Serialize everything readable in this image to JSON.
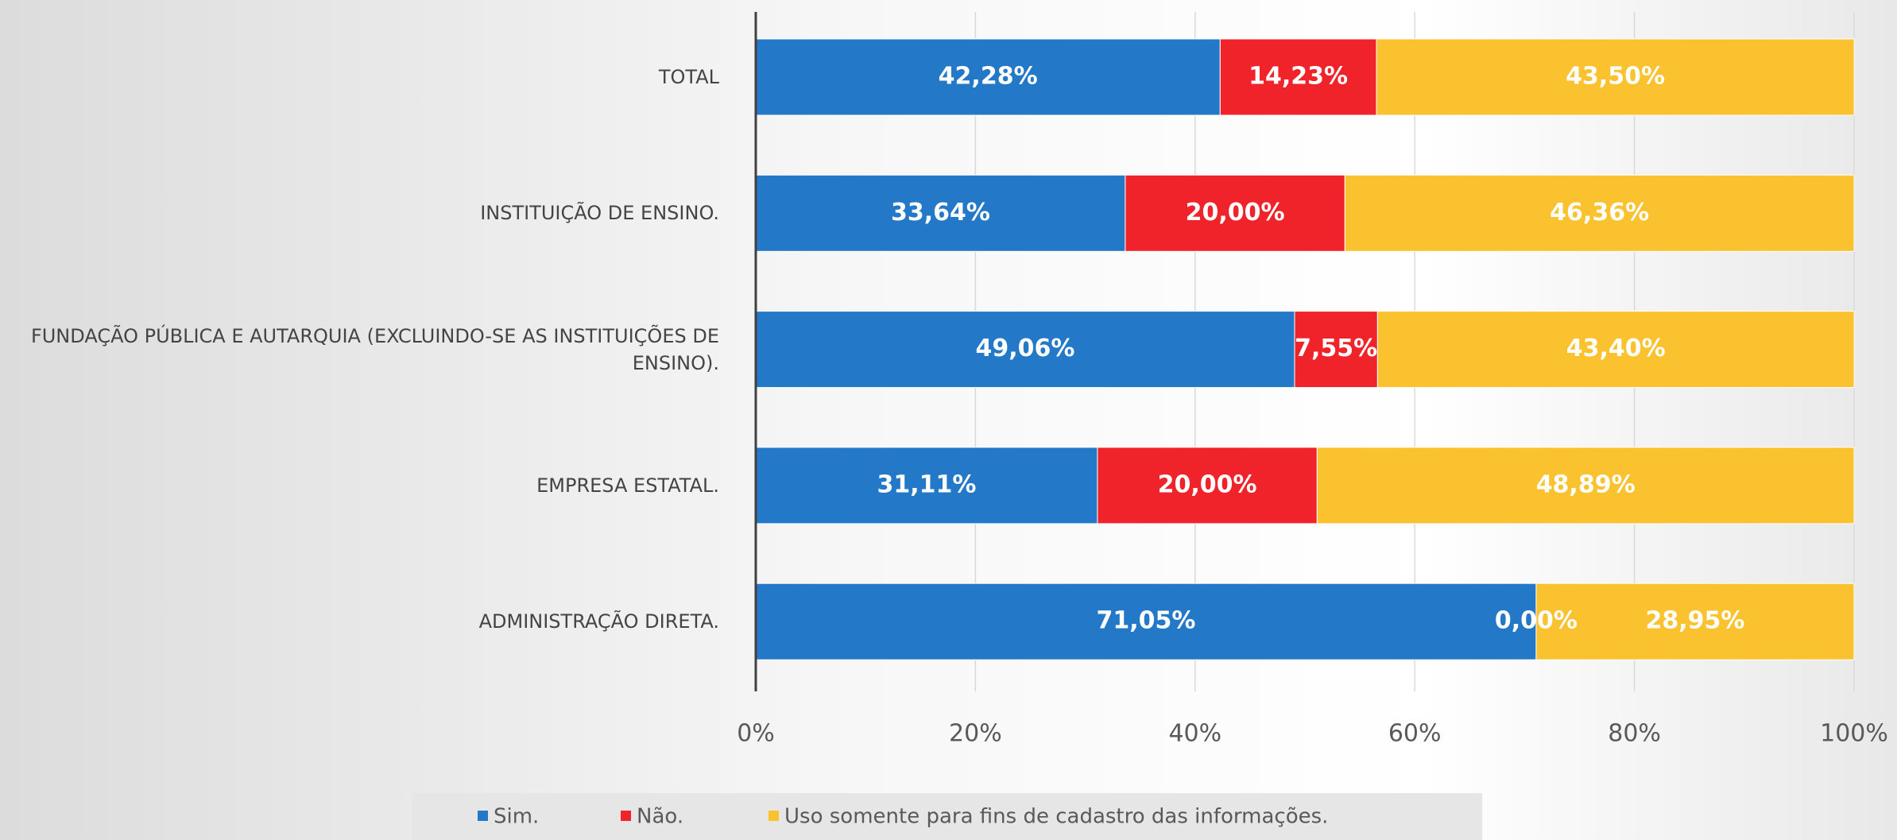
{
  "chart_data": {
    "type": "stacked_barh",
    "categories": [
      "TOTAL",
      "INSTITUIÇÃO DE ENSINO.",
      "FUNDAÇÃO PÚBLICA E AUTARQUIA (EXCLUINDO-SE AS INSTITUIÇÕES DE ENSINO).",
      "EMPRESA ESTATAL.",
      "ADMINISTRAÇÃO DIRETA."
    ],
    "series": [
      {
        "name": "Sim.",
        "color": "#2478c8",
        "values": [
          42.28,
          33.64,
          49.06,
          31.11,
          71.05
        ],
        "value_labels": [
          "42,28%",
          "33,64%",
          "49,06%",
          "31,11%",
          "71,05%"
        ]
      },
      {
        "name": "Não.",
        "color": "#f0232b",
        "values": [
          14.23,
          20.0,
          7.55,
          20.0,
          0.0
        ],
        "value_labels": [
          "14,23%",
          "20,00%",
          "7,55%",
          "20,00%",
          "0,00%"
        ]
      },
      {
        "name": "Uso somente para fins de cadastro das informações.",
        "color": "#f9c22e",
        "values": [
          43.5,
          46.36,
          43.4,
          48.89,
          28.95
        ],
        "value_labels": [
          "43,50%",
          "46,36%",
          "43,40%",
          "48,89%",
          "28,95%"
        ]
      }
    ],
    "xlim": [
      0,
      100
    ],
    "xticks": [
      {
        "value": 0,
        "label": "0%"
      },
      {
        "value": 20,
        "label": "20%"
      },
      {
        "value": 40,
        "label": "40%"
      },
      {
        "value": 60,
        "label": "60%"
      },
      {
        "value": 80,
        "label": "80%"
      },
      {
        "value": 100,
        "label": "100%"
      }
    ],
    "grid": true,
    "legend": "bottom"
  }
}
